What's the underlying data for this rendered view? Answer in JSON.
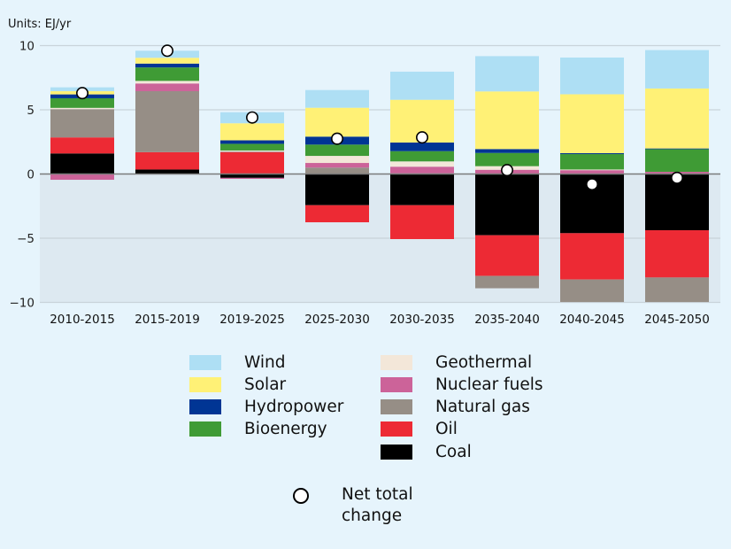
{
  "chart_data": {
    "type": "bar",
    "stacked": true,
    "title": "",
    "units_label": "Units: EJ/yr",
    "xlabel": "",
    "ylabel": "EJ/yr",
    "ylim": [
      -10,
      10
    ],
    "yticks": [
      10,
      5,
      0,
      -5,
      -10
    ],
    "ytick_labels": [
      "10",
      "5",
      "0",
      "−5",
      "−10"
    ],
    "grid": true,
    "categories": [
      "2010-2015",
      "2015-2019",
      "2019-2025",
      "2025-2030",
      "2030-2035",
      "2035-2040",
      "2040-2045",
      "2045-2050"
    ],
    "series": [
      {
        "name": "Coal",
        "color": "#000000",
        "values": [
          1.6,
          0.35,
          -0.3,
          -2.43,
          -2.43,
          -4.77,
          -4.61,
          -4.38
        ]
      },
      {
        "name": "Oil",
        "color": "#ed2a34",
        "values": [
          1.25,
          1.35,
          1.7,
          -1.33,
          -2.64,
          -3.17,
          -3.61,
          -3.68
        ]
      },
      {
        "name": "Natural gas",
        "color": "#968e86",
        "values": [
          2.2,
          4.75,
          0.05,
          0.5,
          0.05,
          -0.96,
          -1.75,
          -1.91
        ]
      },
      {
        "name": "Nuclear fuels",
        "color": "#cc6399",
        "values": [
          -0.45,
          0.6,
          -0.08,
          0.36,
          0.52,
          0.33,
          0.3,
          0.17
        ]
      },
      {
        "name": "Geothermal",
        "color": "#f3e7d9",
        "values": [
          0.1,
          0.2,
          0.08,
          0.55,
          0.41,
          0.28,
          0.05,
          0.0
        ]
      },
      {
        "name": "Bioenergy",
        "color": "#3f9b35",
        "values": [
          0.75,
          1.05,
          0.52,
          0.88,
          0.8,
          1.03,
          1.2,
          1.77
        ]
      },
      {
        "name": "Hydropower",
        "color": "#003594",
        "values": [
          0.3,
          0.3,
          0.27,
          0.62,
          0.67,
          0.3,
          0.07,
          0.05
        ]
      },
      {
        "name": "Solar",
        "color": "#fff176",
        "values": [
          0.25,
          0.45,
          1.33,
          2.25,
          3.33,
          4.49,
          4.59,
          4.67
        ]
      },
      {
        "name": "Wind",
        "color": "#aedff4",
        "values": [
          0.3,
          0.55,
          0.86,
          1.38,
          2.19,
          2.75,
          2.86,
          2.99
        ]
      }
    ],
    "net_total_change": {
      "name": "Net total change",
      "values": [
        6.3,
        9.6,
        4.4,
        2.75,
        2.85,
        0.3,
        -0.8,
        -0.3
      ]
    },
    "legend_position": "bottom"
  },
  "legend": {
    "left_column": [
      {
        "label": "Wind",
        "color": "#aedff4"
      },
      {
        "label": "Solar",
        "color": "#fff176"
      },
      {
        "label": "Hydropower",
        "color": "#003594"
      },
      {
        "label": "Bioenergy",
        "color": "#3f9b35"
      }
    ],
    "right_column": [
      {
        "label": "Geothermal",
        "color": "#f3e7d9"
      },
      {
        "label": "Nuclear fuels",
        "color": "#cc6399"
      },
      {
        "label": "Natural gas",
        "color": "#968e86"
      },
      {
        "label": "Oil",
        "color": "#ed2a34"
      },
      {
        "label": "Coal",
        "color": "#000000"
      }
    ],
    "net_label_line1": "Net total",
    "net_label_line2": "change"
  },
  "colors": {
    "background": "#e6f4fc",
    "negative_region": "#dde9f1",
    "gridline": "#c9d3da",
    "zero_line": "#7a7a7a"
  }
}
